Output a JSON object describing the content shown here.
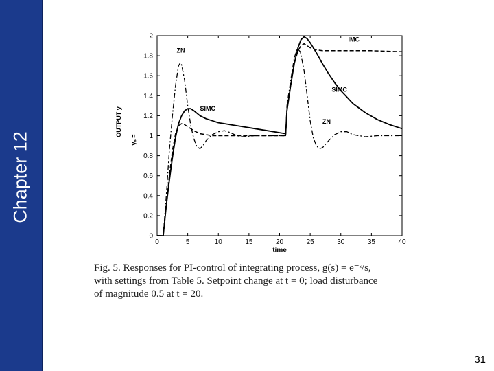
{
  "slide": {
    "chapter_title": "Chapter 12",
    "page_number": "31",
    "caption_lines": [
      "Fig. 5.  Responses for PI-control of integrating process, g(s) = e⁻ˢ/s,",
      "with settings from Table 5. Setpoint change at t = 0; load disturbance",
      "of magnitude 0.5 at t = 20."
    ]
  },
  "chart_data": {
    "type": "line",
    "xlabel": "time",
    "ylabel": "OUTPUT y",
    "xlim": [
      0,
      40
    ],
    "ylim": [
      0,
      2
    ],
    "x_ticks": [
      "0",
      "5",
      "10",
      "15",
      "20",
      "25",
      "30",
      "35",
      "40"
    ],
    "y_ticks": [
      "0",
      "0.2",
      "0.4",
      "0.6",
      "0.8",
      "1",
      "1.2",
      "1.4",
      "1.6",
      "1.8",
      "2"
    ],
    "setpoint_label": "yₛ =",
    "grid": false,
    "series": [
      {
        "name": "SIMC",
        "style": "solid",
        "points": [
          [
            0,
            0
          ],
          [
            1,
            0
          ],
          [
            1.5,
            0.3
          ],
          [
            2,
            0.55
          ],
          [
            2.5,
            0.78
          ],
          [
            3,
            0.98
          ],
          [
            3.5,
            1.12
          ],
          [
            4,
            1.2
          ],
          [
            4.5,
            1.25
          ],
          [
            5,
            1.27
          ],
          [
            5.5,
            1.27
          ],
          [
            6,
            1.25
          ],
          [
            7,
            1.2
          ],
          [
            8,
            1.17
          ],
          [
            9,
            1.15
          ],
          [
            10,
            1.13
          ],
          [
            11,
            1.12
          ],
          [
            12,
            1.11
          ],
          [
            14,
            1.09
          ],
          [
            16,
            1.07
          ],
          [
            18,
            1.05
          ],
          [
            20,
            1.03
          ],
          [
            21,
            1.02
          ],
          [
            21.2,
            1.25
          ],
          [
            21.8,
            1.5
          ],
          [
            22.4,
            1.72
          ],
          [
            23,
            1.88
          ],
          [
            23.5,
            1.96
          ],
          [
            24,
            1.99
          ],
          [
            24.5,
            1.97
          ],
          [
            25,
            1.93
          ],
          [
            26,
            1.83
          ],
          [
            27,
            1.72
          ],
          [
            28,
            1.62
          ],
          [
            29,
            1.53
          ],
          [
            30,
            1.45
          ],
          [
            32,
            1.32
          ],
          [
            34,
            1.23
          ],
          [
            36,
            1.16
          ],
          [
            38,
            1.11
          ],
          [
            40,
            1.07
          ]
        ]
      },
      {
        "name": "IMC",
        "style": "dashed",
        "points": [
          [
            0,
            0
          ],
          [
            1,
            0
          ],
          [
            1.5,
            0.3
          ],
          [
            2,
            0.6
          ],
          [
            2.5,
            0.85
          ],
          [
            3,
            1.02
          ],
          [
            3.5,
            1.1
          ],
          [
            4,
            1.12
          ],
          [
            4.5,
            1.11
          ],
          [
            5,
            1.09
          ],
          [
            6,
            1.05
          ],
          [
            7,
            1.02
          ],
          [
            8,
            1.01
          ],
          [
            9,
            1.0
          ],
          [
            10,
            1.0
          ],
          [
            12,
            1.0
          ],
          [
            14,
            1.0
          ],
          [
            16,
            1.0
          ],
          [
            18,
            1.0
          ],
          [
            20,
            1.0
          ],
          [
            21,
            1.0
          ],
          [
            21.2,
            1.25
          ],
          [
            21.8,
            1.5
          ],
          [
            22.4,
            1.72
          ],
          [
            23,
            1.85
          ],
          [
            23.5,
            1.9
          ],
          [
            24,
            1.92
          ],
          [
            24.5,
            1.9
          ],
          [
            25,
            1.88
          ],
          [
            26,
            1.86
          ],
          [
            27,
            1.85
          ],
          [
            28,
            1.85
          ],
          [
            30,
            1.85
          ],
          [
            35,
            1.85
          ],
          [
            40,
            1.84
          ]
        ]
      },
      {
        "name": "ZN",
        "style": "dashdot",
        "points": [
          [
            0,
            0
          ],
          [
            1,
            0
          ],
          [
            1.5,
            0.4
          ],
          [
            2,
            0.85
          ],
          [
            2.5,
            1.2
          ],
          [
            3,
            1.5
          ],
          [
            3.5,
            1.7
          ],
          [
            3.8,
            1.73
          ],
          [
            4,
            1.71
          ],
          [
            4.5,
            1.55
          ],
          [
            5,
            1.3
          ],
          [
            5.5,
            1.1
          ],
          [
            6,
            0.97
          ],
          [
            6.5,
            0.89
          ],
          [
            7,
            0.87
          ],
          [
            7.5,
            0.9
          ],
          [
            8,
            0.95
          ],
          [
            9,
            1.01
          ],
          [
            10,
            1.04
          ],
          [
            11,
            1.05
          ],
          [
            12,
            1.03
          ],
          [
            13,
            1.0
          ],
          [
            14,
            0.99
          ],
          [
            16,
            1.0
          ],
          [
            18,
            1.0
          ],
          [
            20,
            1.0
          ],
          [
            21,
            1.0
          ],
          [
            21.2,
            1.3
          ],
          [
            21.8,
            1.55
          ],
          [
            22.4,
            1.78
          ],
          [
            22.9,
            1.87
          ],
          [
            23.4,
            1.84
          ],
          [
            24,
            1.65
          ],
          [
            24.5,
            1.4
          ],
          [
            25,
            1.15
          ],
          [
            25.5,
            0.98
          ],
          [
            26,
            0.9
          ],
          [
            26.5,
            0.87
          ],
          [
            27,
            0.88
          ],
          [
            28,
            0.95
          ],
          [
            29,
            1.01
          ],
          [
            30,
            1.04
          ],
          [
            31,
            1.04
          ],
          [
            32,
            1.01
          ],
          [
            34,
            0.99
          ],
          [
            36,
            1.0
          ],
          [
            40,
            1.0
          ]
        ]
      }
    ],
    "annotations": [
      {
        "text": "ZN",
        "x": 3.2,
        "y": 1.83
      },
      {
        "text": "IMC",
        "x": 31.2,
        "y": 1.94
      },
      {
        "text": "SIMC",
        "x": 28.5,
        "y": 1.44
      },
      {
        "text": "SIMC",
        "x": 7.0,
        "y": 1.25
      },
      {
        "text": "ZN",
        "x": 27.0,
        "y": 1.12
      }
    ]
  }
}
